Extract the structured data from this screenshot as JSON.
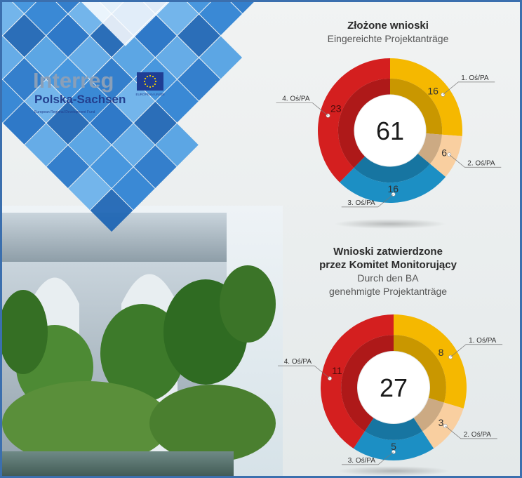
{
  "logo": {
    "title": "Interreg",
    "subtitle": "Polska-Sachsen",
    "fund": "European Regional Development Fund",
    "eu_label": "EUROPEAN UNION"
  },
  "colors": {
    "pa1": "#f5b800",
    "pa2": "#f9cfa0",
    "pa3": "#1c8fc4",
    "pa4": "#d41f1f",
    "brand_blue": "#1f6fbf"
  },
  "chart_data": [
    {
      "type": "pie",
      "title_pl": "Złożone wnioski",
      "title_de": "Eingereichte Projektanträge",
      "total": "61",
      "categories": [
        "1. Oś/PA",
        "2. Oś/PA",
        "3. Oś/PA",
        "4. Oś/PA"
      ],
      "values": [
        16,
        6,
        16,
        23
      ]
    },
    {
      "type": "pie",
      "title_pl_1": "Wnioski zatwierdzone",
      "title_pl_2": "przez Komitet Monitorujący",
      "title_de_1": "Durch den BA",
      "title_de_2": "genehmigte Projektanträge",
      "total": "27",
      "categories": [
        "1. Oś/PA",
        "2. Oś/PA",
        "3. Oś/PA",
        "4. Oś/PA"
      ],
      "values": [
        8,
        3,
        5,
        11
      ]
    }
  ]
}
